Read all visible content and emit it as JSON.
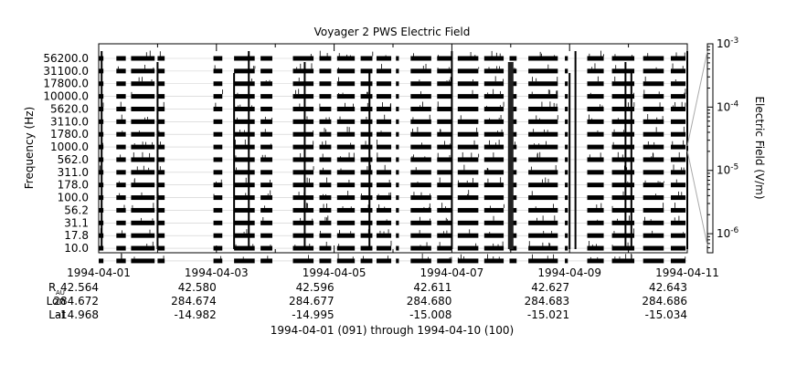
{
  "chart_data": {
    "type": "spectrogram",
    "title": "Voyager 2 PWS Electric Field",
    "ylabel": "Frequency (Hz)",
    "y_ticks": [
      "56200.0",
      "31100.0",
      "17800.0",
      "10000.0",
      "5620.0",
      "3110.0",
      "1780.0",
      "1000.0",
      "562.0",
      "311.0",
      "178.0",
      "100.0",
      "56.2",
      "31.1",
      "17.8",
      "10.0"
    ],
    "x_ticks": [
      "1994-04-01",
      "1994-04-03",
      "1994-04-05",
      "1994-04-07",
      "1994-04-09",
      "1994-04-11"
    ],
    "xlabel": "1994-04-01 (091) through 1994-04-10 (100)",
    "colorbar": {
      "label": "Electric Field (V/m)",
      "scale": "log",
      "range": [
        5e-07,
        0.001
      ],
      "ticks": [
        {
          "value": 0.001,
          "mantissa": "10",
          "exp": "-3"
        },
        {
          "value": 0.0001,
          "mantissa": "10",
          "exp": "-4"
        },
        {
          "value": 1e-05,
          "mantissa": "10",
          "exp": "-5"
        },
        {
          "value": 1e-06,
          "mantissa": "10",
          "exp": "-6"
        }
      ]
    },
    "ephemeris": {
      "r_label": "R",
      "r_sub": "AU",
      "rows": [
        {
          "key": "R",
          "values": [
            "42.564",
            "42.580",
            "42.596",
            "42.611",
            "42.627",
            "42.643"
          ]
        },
        {
          "key": "Lon",
          "values": [
            "284.672",
            "284.674",
            "284.677",
            "284.680",
            "284.683",
            "284.686"
          ]
        },
        {
          "key": "Lat",
          "values": [
            "-14.968",
            "-14.982",
            "-14.995",
            "-15.008",
            "-15.021",
            "-15.034"
          ]
        }
      ]
    },
    "data_segments_days": [
      [
        0.0,
        0.08
      ],
      [
        0.3,
        0.46
      ],
      [
        0.55,
        0.95
      ],
      [
        1.0,
        1.12
      ],
      [
        1.95,
        2.1
      ],
      [
        2.3,
        2.65
      ],
      [
        2.75,
        2.95
      ],
      [
        3.3,
        3.65
      ],
      [
        3.75,
        3.95
      ],
      [
        4.05,
        4.35
      ],
      [
        4.45,
        4.65
      ],
      [
        4.72,
        4.97
      ],
      [
        5.05,
        5.1
      ],
      [
        5.3,
        5.65
      ],
      [
        5.75,
        6.0
      ],
      [
        6.1,
        6.45
      ],
      [
        6.55,
        6.88
      ],
      [
        6.98,
        7.1
      ],
      [
        7.3,
        7.8
      ],
      [
        7.92,
        7.97
      ],
      [
        8.3,
        8.58
      ],
      [
        8.72,
        9.1
      ],
      [
        9.25,
        9.6
      ],
      [
        9.72,
        9.97
      ]
    ],
    "bursts_days": [
      0.05,
      1.0,
      2.3,
      2.55,
      3.5,
      4.6,
      6.0,
      7.0,
      8.0,
      8.1,
      8.95,
      9.05,
      10.0
    ]
  }
}
